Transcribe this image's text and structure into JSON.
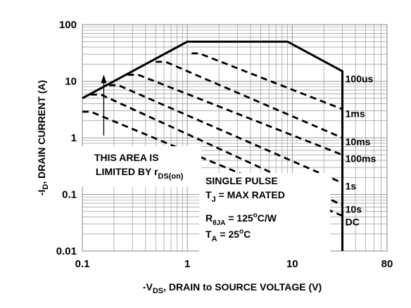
{
  "chart_data": {
    "type": "line",
    "x_scale": "log",
    "y_scale": "log",
    "xlim": [
      0.1,
      80
    ],
    "ylim": [
      0.01,
      100
    ],
    "grid": true,
    "xlabel": {
      "prefix": "-V",
      "sub": "DS",
      "suffix": ", DRAIN to SOURCE VOLTAGE (V)"
    },
    "ylabel": {
      "prefix": "-I",
      "sub": "D",
      "suffix": ", DRAIN CURRENT (A)"
    },
    "x_tick_labels": [
      {
        "value": 0.1,
        "label": "0.1"
      },
      {
        "value": 1,
        "label": "1"
      },
      {
        "value": 10,
        "label": "10"
      },
      {
        "value": 80,
        "label": "80"
      }
    ],
    "y_tick_labels": [
      {
        "value": 0.01,
        "label": "0.01"
      },
      {
        "value": 0.1,
        "label": "0.1"
      },
      {
        "value": 1,
        "label": "1"
      },
      {
        "value": 10,
        "label": "10"
      },
      {
        "value": 100,
        "label": "100"
      }
    ],
    "boundary": {
      "style": "solid",
      "points": [
        [
          0.1,
          5
        ],
        [
          1,
          50
        ],
        [
          9,
          50
        ],
        [
          30,
          15
        ],
        [
          30,
          0.01
        ]
      ]
    },
    "series": [
      {
        "name": "100us",
        "style": "solid",
        "label_at": [
          32,
          11
        ]
      },
      {
        "name": "1ms",
        "style": "dashed",
        "points": [
          [
            1.1,
            31
          ],
          [
            1.3,
            31
          ],
          [
            30,
            3.2
          ]
        ],
        "label_at": [
          32,
          2.7
        ]
      },
      {
        "name": "10ms",
        "style": "dashed",
        "points": [
          [
            0.5,
            22
          ],
          [
            0.62,
            22
          ],
          [
            30,
            1.0
          ]
        ],
        "label_at": [
          32,
          0.85
        ]
      },
      {
        "name": "100ms",
        "style": "dashed",
        "points": [
          [
            0.27,
            13
          ],
          [
            0.34,
            13
          ],
          [
            30,
            0.5
          ]
        ],
        "label_at": [
          32,
          0.43
        ]
      },
      {
        "name": "1s",
        "style": "dashed",
        "points": [
          [
            0.18,
            8.5
          ],
          [
            0.22,
            8.5
          ],
          [
            30,
            0.16
          ]
        ],
        "label_at": [
          32,
          0.14
        ]
      },
      {
        "name": "10s",
        "style": "dashed",
        "points": [
          [
            0.12,
            5.8
          ],
          [
            0.15,
            5.8
          ],
          [
            30,
            0.065
          ]
        ],
        "label_at": [
          32,
          0.055
        ]
      },
      {
        "name": "DC",
        "style": "dashed",
        "points": [
          [
            0.1,
            2.9
          ],
          [
            0.12,
            2.9
          ],
          [
            30,
            0.042
          ]
        ],
        "label_at": [
          32,
          0.033
        ]
      }
    ],
    "annotations": {
      "area_text_line1": "THIS AREA IS",
      "area_text_line2": "LIMITED BY r",
      "area_text_sub": "DS(on)",
      "arrow": {
        "x": 0.16,
        "y_from": 1.1,
        "y_to": 12
      },
      "pulse_title": "SINGLE PULSE",
      "tj": {
        "main": "T",
        "sub": "J",
        "rest": " = MAX RATED"
      },
      "rja": {
        "main": "R",
        "sub": "θJA",
        "rest": " = 125",
        "sup": "o",
        "unit": "C/W"
      },
      "ta": {
        "main": "T",
        "sub": "A",
        "rest": " = 25",
        "sup": "o",
        "unit": "C"
      }
    }
  }
}
